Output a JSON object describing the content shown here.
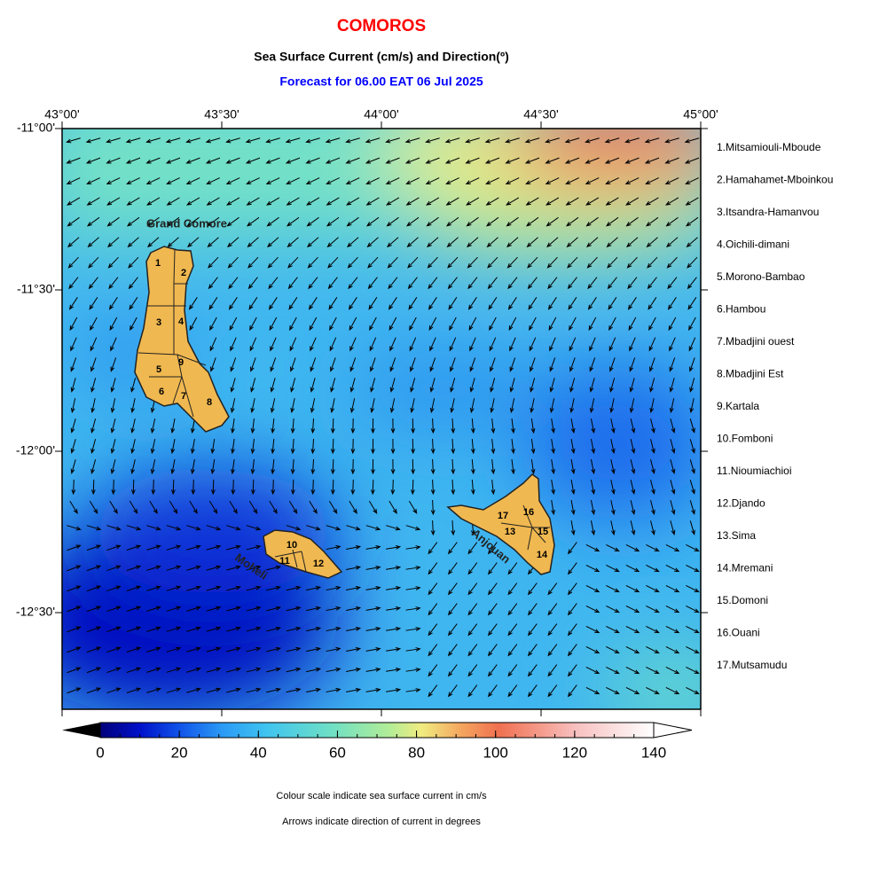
{
  "header": {
    "title": "COMOROS",
    "subtitle": "Sea Surface Current (cm/s) and Direction(º)",
    "forecast": "Forecast for  06.00 EAT 06 Jul 2025"
  },
  "map": {
    "lon_labels": [
      "43°00'",
      "43°30'",
      "44°00'",
      "44°30'",
      "45°00'"
    ],
    "lat_labels": [
      "-11°00'",
      "-11°30'",
      "-12°00'",
      "-12°30'"
    ],
    "islands": [
      "Grand Comore",
      "Moheli",
      "Anjouan"
    ],
    "region_labels": [
      "1",
      "2",
      "3",
      "4",
      "5",
      "6",
      "7",
      "8",
      "9",
      "10",
      "11",
      "12",
      "13",
      "14",
      "15",
      "16",
      "17"
    ]
  },
  "legend": {
    "items": [
      "1.Mitsamiouli-Mboude",
      "2.Hamahamet-Mboinkou",
      "3.Itsandra-Hamanvou",
      "4.Oichili-dimani",
      "5.Morono-Bambao",
      "6.Hambou",
      "7.Mbadjini ouest",
      "8.Mbadjini Est",
      "9.Kartala",
      "10.Fomboni",
      "11.Nioumiachioi",
      "12.Djando",
      "13.Sima",
      "14.Mremani",
      "15.Domoni",
      "16.Ouani",
      "17.Mutsamudu"
    ]
  },
  "colorbar": {
    "range": [
      0,
      140
    ],
    "ticks": [
      0,
      20,
      40,
      60,
      80,
      100,
      120,
      140
    ]
  },
  "notes": [
    "Colour scale indicate sea surface current in cm/s",
    "Arrows indicate direction of current in degrees"
  ]
}
